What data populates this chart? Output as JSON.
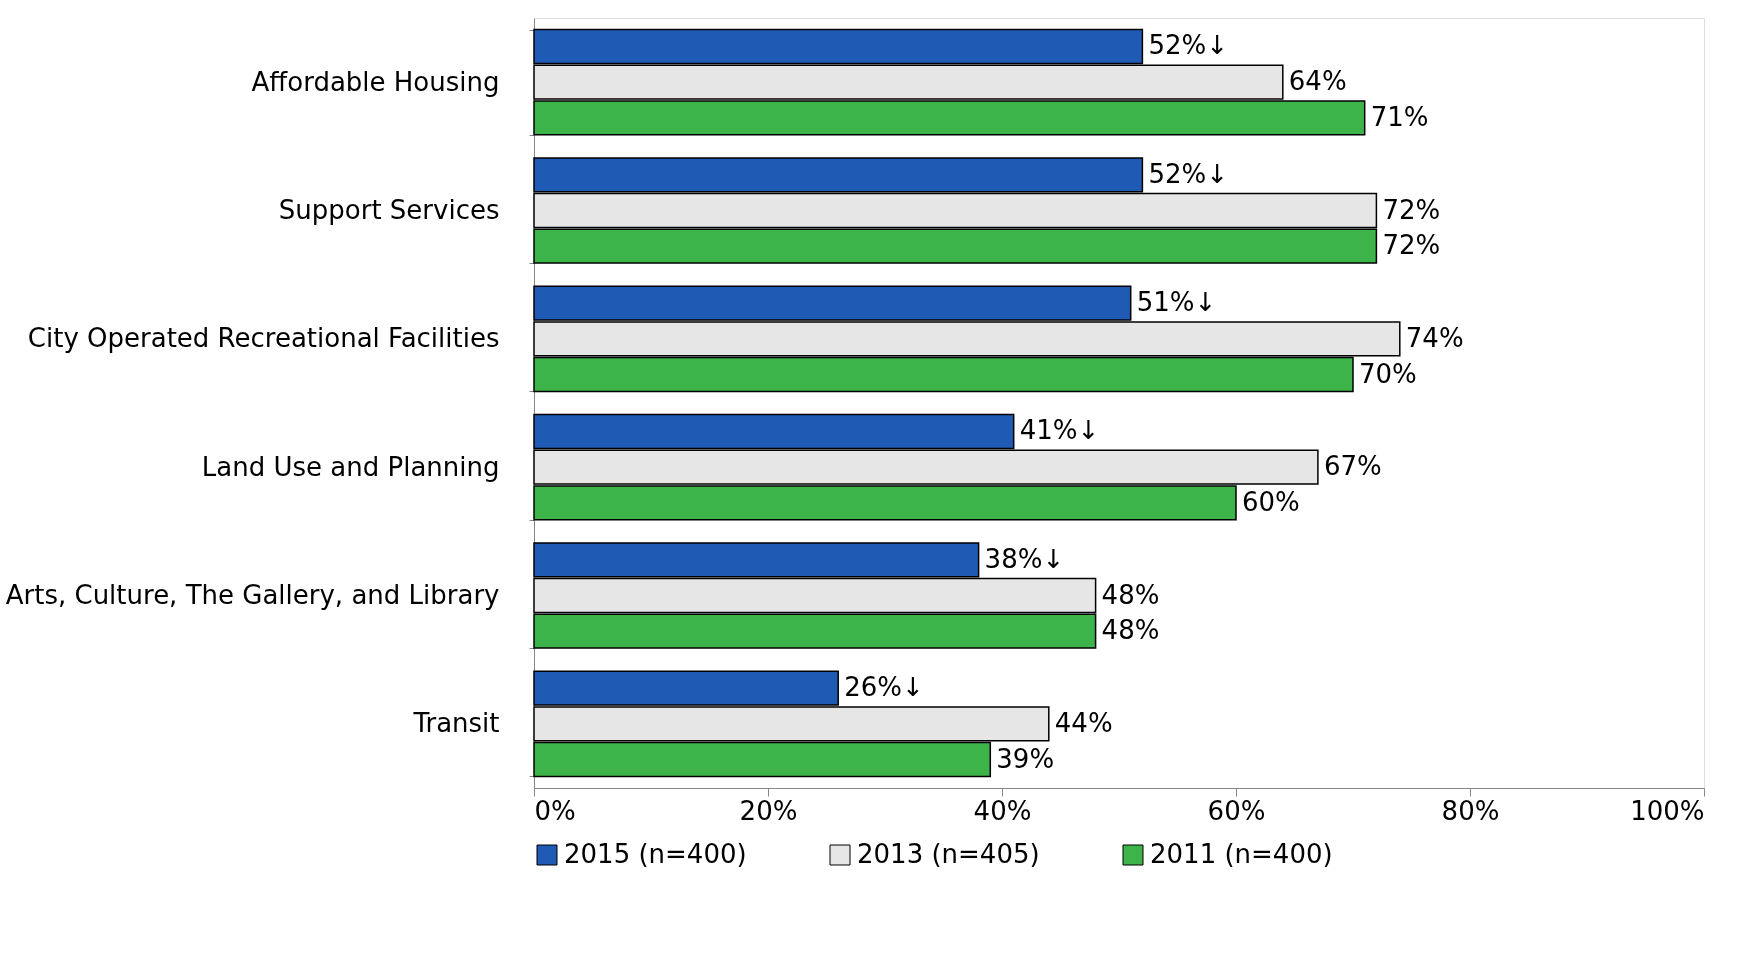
{
  "chart_data": {
    "type": "bar",
    "orientation": "horizontal",
    "categories": [
      "Affordable Housing",
      "Support Services",
      "City Operated Recreational Facilities",
      "Land Use and Planning",
      "Arts, Culture, The Gallery, and Library",
      "Transit"
    ],
    "series": [
      {
        "name": "2015 (n=400)",
        "color": "#1f5bb5",
        "values": [
          52,
          52,
          51,
          41,
          38,
          26
        ],
        "value_labels": [
          "52%↓",
          "52%↓",
          "51%↓",
          "41%↓",
          "38%↓",
          "26%↓"
        ]
      },
      {
        "name": "2013 (n=405)",
        "color": "#e6e6e6",
        "values": [
          64,
          72,
          74,
          67,
          48,
          44
        ],
        "value_labels": [
          "64%",
          "72%",
          "74%",
          "67%",
          "48%",
          "44%"
        ]
      },
      {
        "name": "2011 (n=400)",
        "color": "#3cb44a",
        "values": [
          71,
          72,
          70,
          60,
          48,
          39
        ],
        "value_labels": [
          "71%",
          "72%",
          "70%",
          "60%",
          "48%",
          "39%"
        ]
      }
    ],
    "xlim": [
      0,
      100
    ],
    "xticks": [
      {
        "value": 0,
        "label": "0%"
      },
      {
        "value": 20,
        "label": "20%"
      },
      {
        "value": 40,
        "label": "40%"
      },
      {
        "value": 60,
        "label": "60%"
      },
      {
        "value": 80,
        "label": "80%"
      },
      {
        "value": 100,
        "label": "100%"
      }
    ],
    "grid": false,
    "legend": "bottom"
  }
}
